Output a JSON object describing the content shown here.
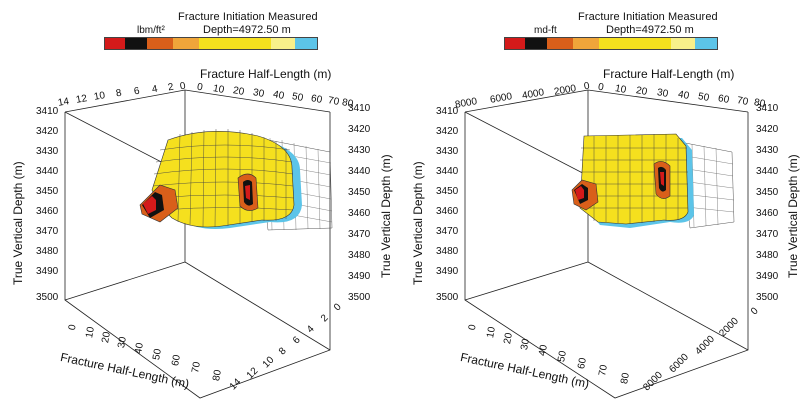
{
  "legend_colors": [
    "#d41a1a",
    "#111111",
    "#d95f1a",
    "#f0a53a",
    "#f5e01e",
    "#f8f08a",
    "#5cc4e8"
  ],
  "panels": [
    {
      "legend": {
        "title": "Fracture Initiation Measured",
        "depth": "Depth=4972.50 m",
        "unit": "lbm/ft²"
      },
      "axis_titles": {
        "top": "Fracture Half-Length (m)",
        "left": "True Vertical Depth (m)",
        "right": "True Vertical Depth (m)",
        "bottom": "Fracture Half-Length (m)"
      },
      "top_ticks": [
        "14",
        "12",
        "10",
        "8",
        "6",
        "4",
        "2",
        "0",
        "0",
        "10",
        "20",
        "30",
        "40",
        "50",
        "60",
        "70",
        "80"
      ],
      "depth_ticks": [
        "3410",
        "3420",
        "3430",
        "3440",
        "3450",
        "3460",
        "3470",
        "3480",
        "3490",
        "3500"
      ],
      "bottom_ticks": [
        "0",
        "10",
        "20",
        "30",
        "40",
        "50",
        "60",
        "70",
        "80"
      ],
      "side_ticks": [
        "0",
        "2",
        "4",
        "6",
        "8",
        "10",
        "12",
        "14"
      ]
    },
    {
      "legend": {
        "title": "Fracture Initiation Measured",
        "depth": "Depth=4972.50 m",
        "unit": "md-ft"
      },
      "axis_titles": {
        "top": "Fracture Half-Length (m)",
        "left": "True Vertical Depth (m)",
        "right": "True Vertical Depth (m)",
        "bottom": "Fracture Half-Length (m)"
      },
      "top_ticks": [
        "8000",
        "6000",
        "4000",
        "2000",
        "0",
        "0",
        "10",
        "20",
        "30",
        "40",
        "50",
        "60",
        "70",
        "80"
      ],
      "depth_ticks": [
        "3410",
        "3420",
        "3430",
        "3440",
        "3450",
        "3460",
        "3470",
        "3480",
        "3490",
        "3500"
      ],
      "bottom_ticks": [
        "0",
        "10",
        "20",
        "30",
        "40",
        "50",
        "60",
        "70",
        "80"
      ],
      "side_ticks": [
        "0",
        "2000",
        "4000",
        "6000",
        "8000"
      ]
    }
  ]
}
